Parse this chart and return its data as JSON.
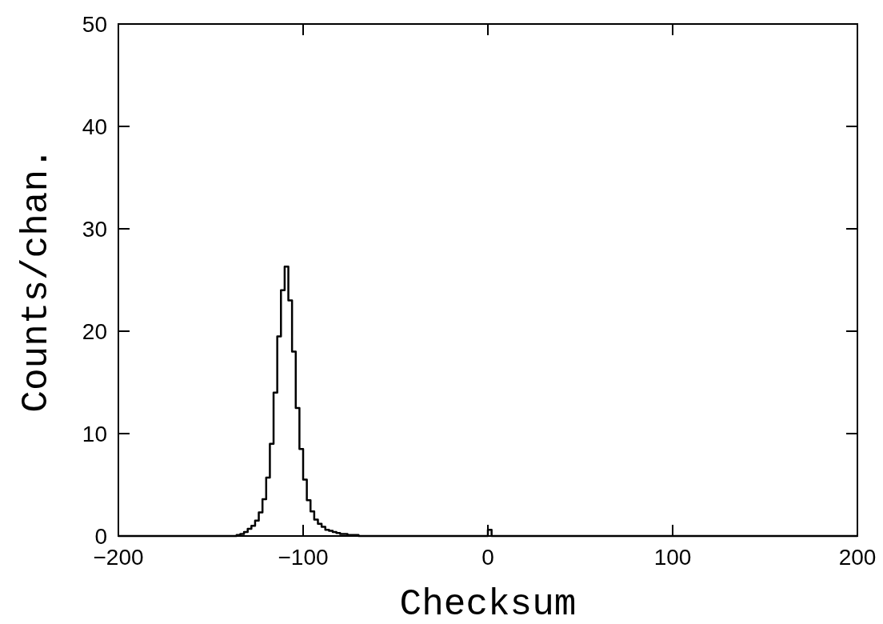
{
  "chart_data": {
    "type": "histogram",
    "xlabel": "Checksum",
    "ylabel": "Counts/chan.",
    "bins": [
      -200,
      -136,
      -134,
      -132,
      -130,
      -128,
      -126,
      -124,
      -122,
      -120,
      -118,
      -116,
      -114,
      -112,
      -110,
      -108,
      -106,
      -104,
      -102,
      -100,
      -98,
      -96,
      -94,
      -92,
      -90,
      -88,
      -86,
      -84,
      -82,
      -80,
      -78,
      -76,
      -74,
      -72,
      -70,
      0,
      2,
      200
    ],
    "values": [
      0,
      0.1,
      0.2,
      0.4,
      0.7,
      1,
      1.5,
      2.3,
      3.6,
      5.7,
      9,
      14,
      19.5,
      24,
      26.3,
      23,
      18,
      12.5,
      8.5,
      5.5,
      3.5,
      2.4,
      1.6,
      1.2,
      0.9,
      0.6,
      0.5,
      0.4,
      0.3,
      0.2,
      0.2,
      0.1,
      0.1,
      0.1,
      0,
      0.6,
      0
    ],
    "color": "#000000",
    "xlim": [
      -200,
      200
    ],
    "xticks": [
      {
        "value": -200,
        "label": "−200"
      },
      {
        "value": -100,
        "label": "−100"
      },
      0,
      100,
      200
    ],
    "ylim": [
      0,
      50
    ],
    "yticks": [
      0,
      10,
      20,
      30,
      40,
      50
    ]
  }
}
